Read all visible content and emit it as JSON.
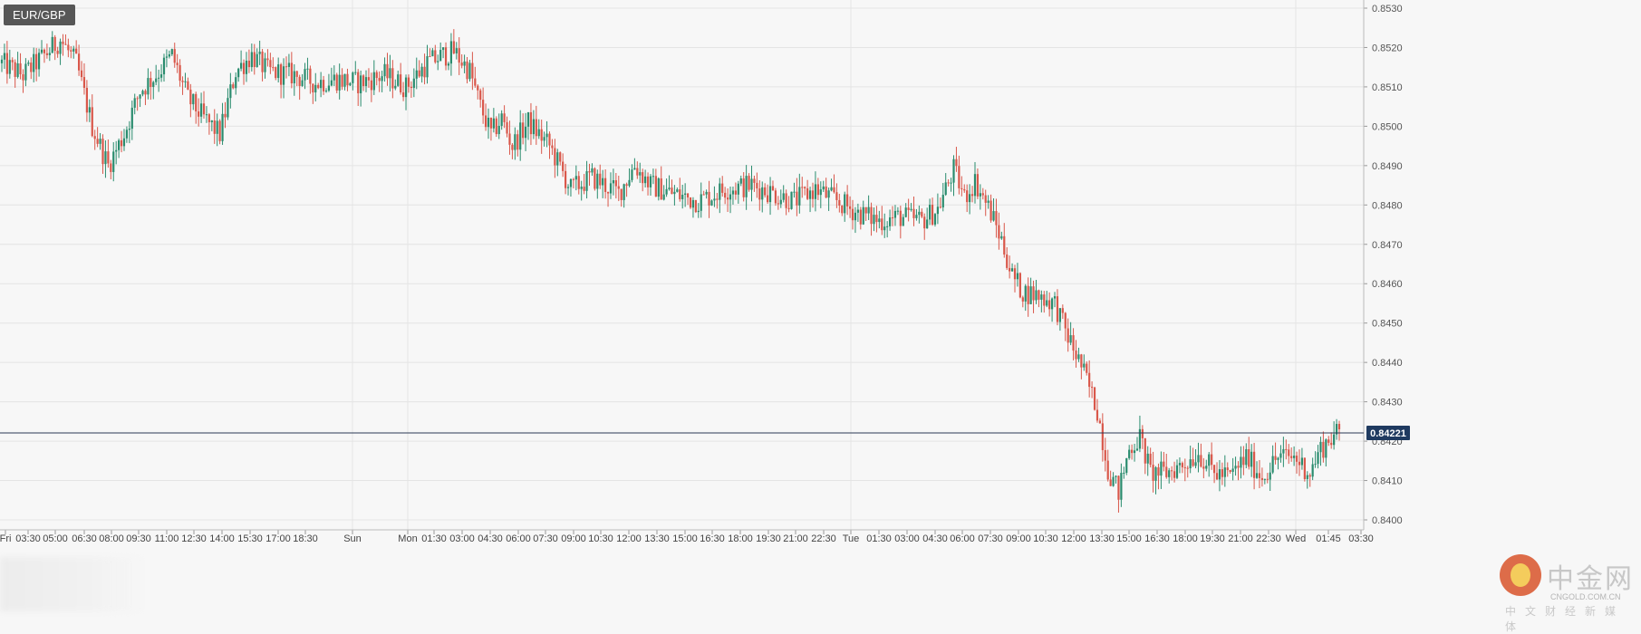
{
  "symbol": "EUR/GBP",
  "current_price_label": "0.84221",
  "colors": {
    "up": "#2a8c6e",
    "down": "#d9574a",
    "grid": "#e4e4e4",
    "price_line": "#2b3a55",
    "badge_bg": "#1f3a60"
  },
  "watermark": {
    "brand": "中金网",
    "url": "CNGOLD.COM.CN",
    "subtitle": "中文财经新媒体"
  },
  "chart_data": {
    "type": "candlestick",
    "y_axis": {
      "min": 0.84,
      "max": 0.853,
      "ticks": [
        "0.8400",
        "0.8410",
        "0.8420",
        "0.8430",
        "0.8440",
        "0.8450",
        "0.8460",
        "0.8470",
        "0.8480",
        "0.8490",
        "0.8500",
        "0.8510",
        "0.8520",
        "0.8530"
      ]
    },
    "x_labels": [
      "Fri",
      "03:30",
      "05:00",
      "06:30",
      "08:00",
      "09:30",
      "11:00",
      "12:30",
      "14:00",
      "15:30",
      "17:00",
      "18:30",
      "Sun",
      "Mon",
      "01:30",
      "03:00",
      "04:30",
      "06:00",
      "07:30",
      "09:00",
      "10:30",
      "12:00",
      "13:30",
      "15:00",
      "16:30",
      "18:00",
      "19:30",
      "21:00",
      "22:30",
      "Tue",
      "01:30",
      "03:00",
      "04:30",
      "06:00",
      "07:30",
      "09:00",
      "10:30",
      "12:00",
      "13:30",
      "15:00",
      "16:30",
      "18:00",
      "19:30",
      "21:00",
      "22:30",
      "Wed",
      "01:45",
      "03:30"
    ],
    "current_price": 0.84221,
    "price_path": [
      [
        0,
        0.8516
      ],
      [
        8,
        0.8513
      ],
      [
        16,
        0.8518
      ],
      [
        22,
        0.8522
      ],
      [
        28,
        0.8516
      ],
      [
        34,
        0.85
      ],
      [
        40,
        0.849
      ],
      [
        46,
        0.8498
      ],
      [
        52,
        0.8509
      ],
      [
        58,
        0.8513
      ],
      [
        64,
        0.8518
      ],
      [
        70,
        0.8507
      ],
      [
        76,
        0.8502
      ],
      [
        82,
        0.8498
      ],
      [
        88,
        0.8514
      ],
      [
        94,
        0.8518
      ],
      [
        100,
        0.8514
      ],
      [
        110,
        0.8513
      ],
      [
        118,
        0.8511
      ],
      [
        126,
        0.8512
      ],
      [
        134,
        0.8511
      ],
      [
        144,
        0.8513
      ],
      [
        152,
        0.851
      ],
      [
        160,
        0.8516
      ],
      [
        166,
        0.8518
      ],
      [
        170,
        0.8519
      ],
      [
        176,
        0.8514
      ],
      [
        180,
        0.8505
      ],
      [
        184,
        0.8498
      ],
      [
        188,
        0.8502
      ],
      [
        192,
        0.8495
      ],
      [
        198,
        0.8501
      ],
      [
        206,
        0.8495
      ],
      [
        214,
        0.8484
      ],
      [
        222,
        0.8487
      ],
      [
        232,
        0.8483
      ],
      [
        238,
        0.849
      ],
      [
        244,
        0.8485
      ],
      [
        252,
        0.8483
      ],
      [
        262,
        0.8481
      ],
      [
        272,
        0.8484
      ],
      [
        282,
        0.8485
      ],
      [
        290,
        0.8483
      ],
      [
        298,
        0.8481
      ],
      [
        306,
        0.8484
      ],
      [
        314,
        0.8481
      ],
      [
        322,
        0.8478
      ],
      [
        330,
        0.8476
      ],
      [
        338,
        0.8477
      ],
      [
        346,
        0.8476
      ],
      [
        352,
        0.8479
      ],
      [
        358,
        0.8489
      ],
      [
        362,
        0.8482
      ],
      [
        366,
        0.8486
      ],
      [
        372,
        0.8478
      ],
      [
        376,
        0.8471
      ],
      [
        380,
        0.8462
      ],
      [
        384,
        0.8458
      ],
      [
        390,
        0.8457
      ],
      [
        396,
        0.8455
      ],
      [
        400,
        0.8448
      ],
      [
        406,
        0.8439
      ],
      [
        412,
        0.8428
      ],
      [
        416,
        0.8413
      ],
      [
        420,
        0.8407
      ],
      [
        424,
        0.8418
      ],
      [
        428,
        0.8421
      ],
      [
        432,
        0.8412
      ],
      [
        438,
        0.8412
      ],
      [
        444,
        0.8414
      ],
      [
        450,
        0.8417
      ],
      [
        456,
        0.8412
      ],
      [
        462,
        0.8411
      ],
      [
        468,
        0.8416
      ],
      [
        474,
        0.8411
      ],
      [
        480,
        0.8416
      ],
      [
        486,
        0.8416
      ],
      [
        492,
        0.8412
      ],
      [
        496,
        0.8418
      ],
      [
        500,
        0.8421
      ],
      [
        503,
        0.8422
      ]
    ]
  }
}
